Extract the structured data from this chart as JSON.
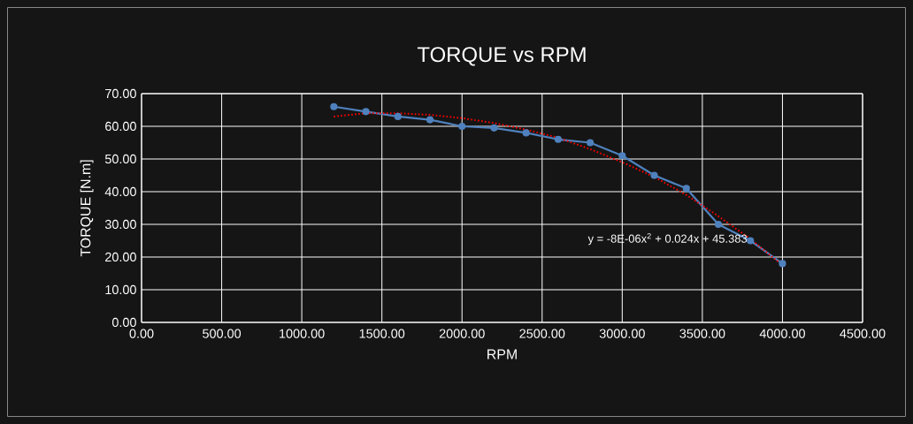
{
  "chart_data": {
    "type": "line",
    "title": "TORQUE vs RPM",
    "xlabel": "RPM",
    "ylabel": "TORQUE [N.m]",
    "x": [
      1200,
      1400,
      1600,
      1800,
      2000,
      2200,
      2400,
      2600,
      2800,
      3000,
      3200,
      3400,
      3600,
      3800,
      4000
    ],
    "series": [
      {
        "color": "#4f81bd",
        "marker": "circle",
        "line_style": "solid",
        "values": [
          66,
          64.5,
          63,
          62,
          60,
          59.5,
          58,
          56,
          55,
          51,
          45,
          41,
          30,
          25,
          18
        ]
      },
      {
        "color": "#ff0000",
        "marker": "none",
        "line_style": "dotted",
        "values": [
          63,
          64,
          64,
          63.5,
          62.5,
          61,
          59,
          56.5,
          53,
          49,
          44.5,
          39,
          32.5,
          25.5,
          17.5
        ]
      }
    ],
    "annotations": [
      {
        "text": "y = -8E-06x$^{2}$ + 0.024x + 45.383",
        "x": 3800,
        "y": 25.5
      }
    ],
    "xlim": [
      0,
      4500
    ],
    "ylim": [
      0,
      70
    ],
    "xticks": [
      {
        "value": 0,
        "label": "0.00"
      },
      {
        "value": 500,
        "label": "500.00"
      },
      {
        "value": 1000,
        "label": "1000.00"
      },
      {
        "value": 1500,
        "label": "1500.00"
      },
      {
        "value": 2000,
        "label": "2000.00"
      },
      {
        "value": 2500,
        "label": "2500.00"
      },
      {
        "value": 3000,
        "label": "3000.00"
      },
      {
        "value": 3500,
        "label": "3500.00"
      },
      {
        "value": 4000,
        "label": "4000.00"
      },
      {
        "value": 4500,
        "label": "4500.00"
      }
    ],
    "yticks": [
      {
        "value": 0,
        "label": "0.00"
      },
      {
        "value": 10,
        "label": "10.00"
      },
      {
        "value": 20,
        "label": "20.00"
      },
      {
        "value": 30,
        "label": "30.00"
      },
      {
        "value": 40,
        "label": "40.00"
      },
      {
        "value": 50,
        "label": "50.00"
      },
      {
        "value": 60,
        "label": "60.00"
      },
      {
        "value": 70,
        "label": "70.00"
      }
    ],
    "grid": true
  }
}
